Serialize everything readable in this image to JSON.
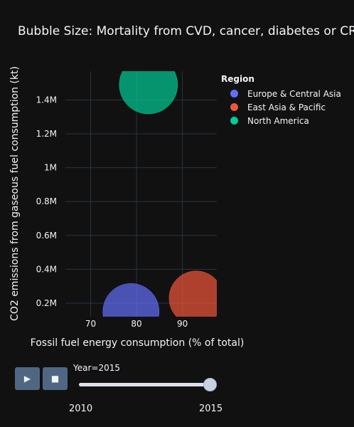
{
  "chart_data": {
    "type": "scatter",
    "title": "Bubble Size: Mortality from CVD, cancer, diabetes or CRD",
    "xlabel": "Fossil fuel energy consumption (% of total)",
    "ylabel": "CO2 emissions from gaseous fuel consumption (kt)",
    "xlim": [
      64.5,
      97.5
    ],
    "ylim": [
      120000,
      1570000
    ],
    "x_ticks": [
      70,
      80,
      90
    ],
    "x_tick_labels": [
      "70",
      "80",
      "90"
    ],
    "y_ticks": [
      200000,
      400000,
      600000,
      800000,
      1000000,
      1200000,
      1400000
    ],
    "y_tick_labels": [
      "0.2M",
      "0.4M",
      "0.6M",
      "0.8M",
      "1M",
      "1.2M",
      "1.4M"
    ],
    "grid": true,
    "legend_title": "Region",
    "legend_position": "top-right",
    "series": [
      {
        "name": "Europe & Central Asia",
        "color": "#636efa",
        "x": [
          78.8
        ],
        "y": [
          150000
        ],
        "size": [
          0.93
        ]
      },
      {
        "name": "East Asia & Pacific",
        "color": "#ef553b",
        "x": [
          93.0
        ],
        "y": [
          230000
        ],
        "size": [
          0.86
        ]
      },
      {
        "name": "North America",
        "color": "#00cc96",
        "x": [
          82.6
        ],
        "y": [
          1490000
        ],
        "size": [
          1.0
        ]
      }
    ]
  },
  "slider": {
    "prefix": "Year=",
    "current_value": "2015",
    "steps": [
      "2010",
      "2015"
    ],
    "position_fraction": 1.0
  },
  "controls": {
    "play_icon": "▶",
    "stop_icon": "■"
  }
}
